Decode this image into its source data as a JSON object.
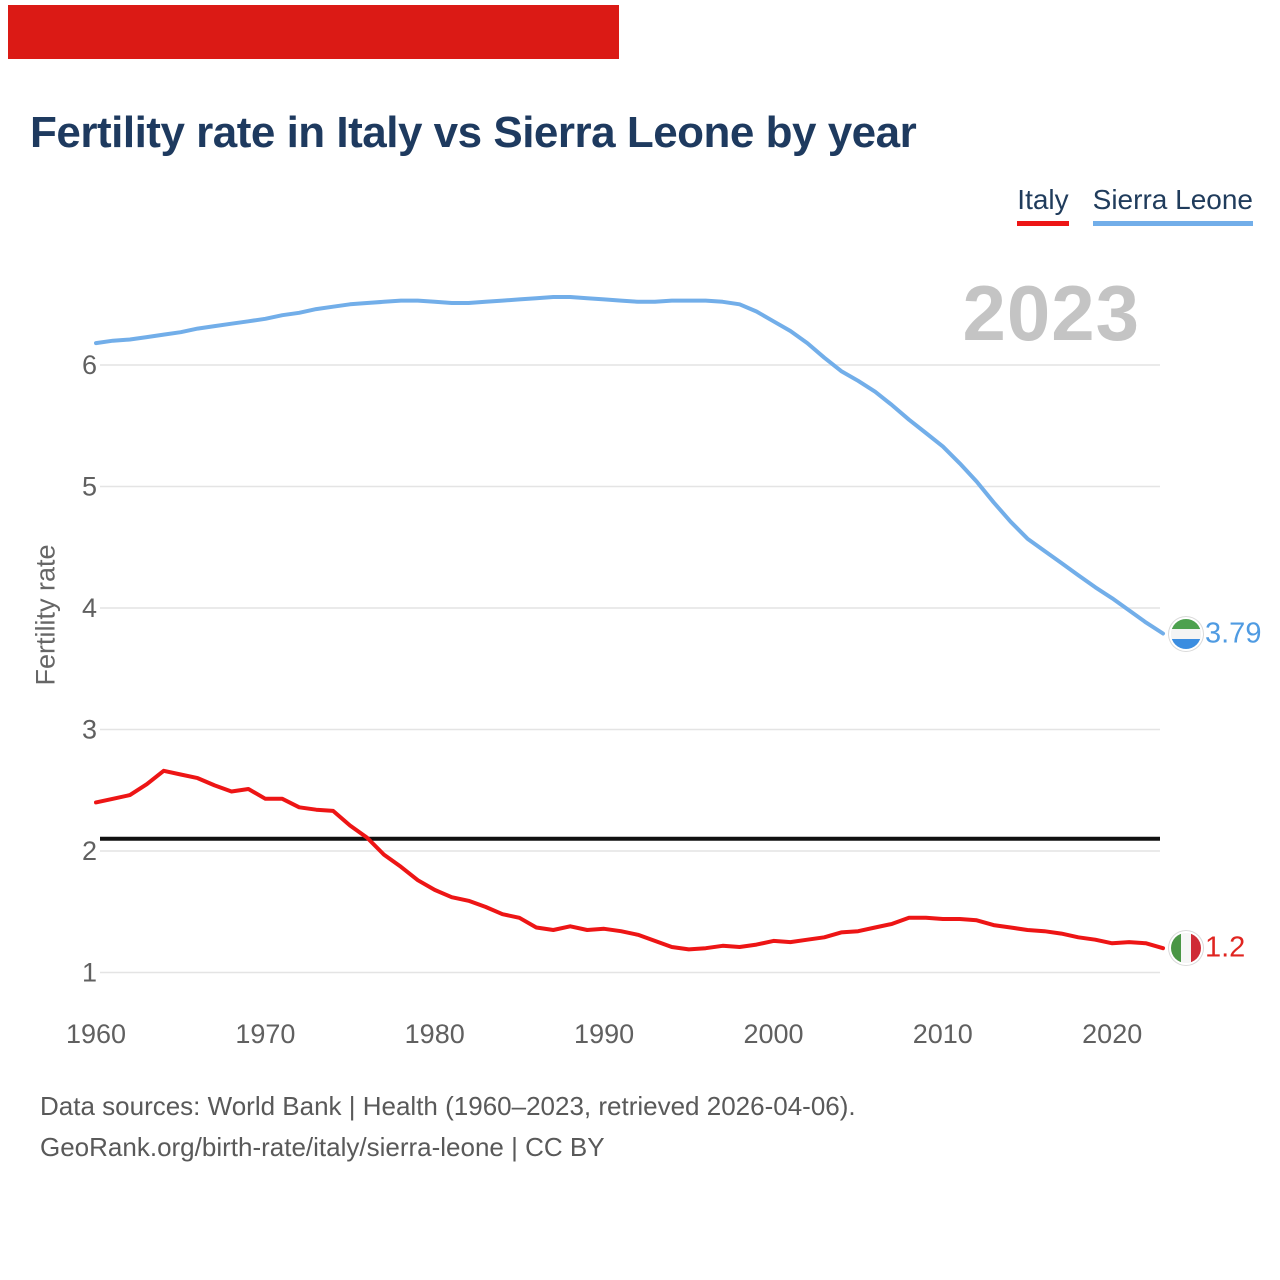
{
  "title": "Fertility rate in Italy vs Sierra Leone by year",
  "legend": [
    {
      "label": "Italy",
      "color": "#ed1515"
    },
    {
      "label": "Sierra Leone",
      "color": "#72aee9"
    }
  ],
  "watermark_year": "2023",
  "y_axis_title": "Fertility rate",
  "end_labels": {
    "italy": "1.2",
    "sierra_leone": "3.79"
  },
  "footer": {
    "line1": "Data sources: World Bank | Health (1960–2023, retrieved 2026-04-06).",
    "line2": "GeoRank.org/birth-rate/italy/sierra-leone | CC BY"
  },
  "colors": {
    "banner": "#db1a15",
    "italy_line": "#ed1515",
    "italy_label": "#e02520",
    "sierra_leone_line": "#72aee9",
    "sierra_leone_label": "#4f9be2",
    "grid": "#e4e4e4",
    "reference_line": "#111111",
    "title_text": "#1e3a5f",
    "tick_text": "#606060",
    "watermark": "#c4c4c4"
  },
  "chart_data": {
    "type": "line",
    "title": "Fertility rate in Italy vs Sierra Leone by year",
    "xlabel": "",
    "ylabel": "Fertility rate",
    "x": [
      1960,
      1961,
      1962,
      1963,
      1964,
      1965,
      1966,
      1967,
      1968,
      1969,
      1970,
      1971,
      1972,
      1973,
      1974,
      1975,
      1976,
      1977,
      1978,
      1979,
      1980,
      1981,
      1982,
      1983,
      1984,
      1985,
      1986,
      1987,
      1988,
      1989,
      1990,
      1991,
      1992,
      1993,
      1994,
      1995,
      1996,
      1997,
      1998,
      1999,
      2000,
      2001,
      2002,
      2003,
      2004,
      2005,
      2006,
      2007,
      2008,
      2009,
      2010,
      2011,
      2012,
      2013,
      2014,
      2015,
      2016,
      2017,
      2018,
      2019,
      2020,
      2021,
      2022,
      2023
    ],
    "xticks": [
      1960,
      1970,
      1980,
      1990,
      2000,
      2010,
      2020
    ],
    "yticks": [
      1,
      2,
      3,
      4,
      5,
      6
    ],
    "ylim": [
      0.9,
      6.8
    ],
    "grid": true,
    "legend_position": "top-right",
    "reference_line": {
      "value": 2.1,
      "color": "#111111"
    },
    "series": [
      {
        "name": "Italy",
        "color": "#ed1515",
        "end_label": "1.2",
        "values": [
          2.4,
          2.43,
          2.46,
          2.55,
          2.66,
          2.63,
          2.6,
          2.54,
          2.49,
          2.51,
          2.43,
          2.43,
          2.36,
          2.34,
          2.33,
          2.21,
          2.11,
          1.97,
          1.87,
          1.76,
          1.68,
          1.62,
          1.59,
          1.54,
          1.48,
          1.45,
          1.37,
          1.35,
          1.38,
          1.35,
          1.36,
          1.34,
          1.31,
          1.26,
          1.21,
          1.19,
          1.2,
          1.22,
          1.21,
          1.23,
          1.26,
          1.25,
          1.27,
          1.29,
          1.33,
          1.34,
          1.37,
          1.4,
          1.45,
          1.45,
          1.44,
          1.44,
          1.43,
          1.39,
          1.37,
          1.35,
          1.34,
          1.32,
          1.29,
          1.27,
          1.24,
          1.25,
          1.24,
          1.2
        ]
      },
      {
        "name": "Sierra Leone",
        "color": "#72aee9",
        "end_label": "3.79",
        "values": [
          6.18,
          6.2,
          6.21,
          6.23,
          6.25,
          6.27,
          6.3,
          6.32,
          6.34,
          6.36,
          6.38,
          6.41,
          6.43,
          6.46,
          6.48,
          6.5,
          6.51,
          6.52,
          6.53,
          6.53,
          6.52,
          6.51,
          6.51,
          6.52,
          6.53,
          6.54,
          6.55,
          6.56,
          6.56,
          6.55,
          6.54,
          6.53,
          6.52,
          6.52,
          6.53,
          6.53,
          6.53,
          6.52,
          6.5,
          6.44,
          6.36,
          6.28,
          6.18,
          6.06,
          5.95,
          5.87,
          5.78,
          5.67,
          5.55,
          5.44,
          5.33,
          5.19,
          5.04,
          4.87,
          4.71,
          4.57,
          4.47,
          4.37,
          4.27,
          4.17,
          4.08,
          3.98,
          3.88,
          3.79
        ]
      }
    ]
  }
}
